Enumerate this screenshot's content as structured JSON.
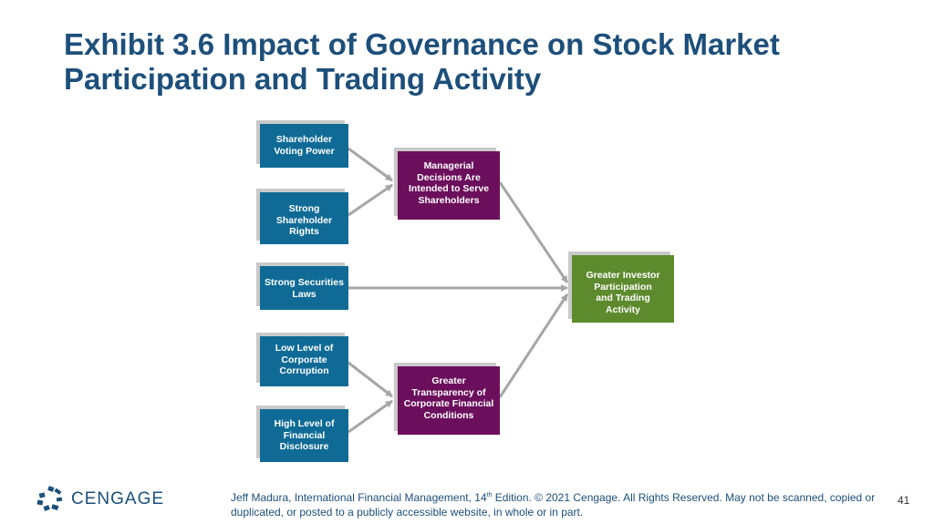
{
  "title": "Exhibit 3.6 Impact of Governance on Stock Market Participation and Trading Activity",
  "boxes": {
    "voting": "Shareholder\nVoting Power",
    "rights": "Strong\nShareholder\nRights",
    "securities": "Strong Securities\nLaws",
    "corruption": "Low Level of\nCorporate\nCorruption",
    "disclosure": "High Level of\nFinancial\nDisclosure",
    "managerial": "Managerial\nDecisions Are\nIntended to Serve\nShareholders",
    "transparency": "Greater\nTransparency of\nCorporate Financial\nConditions",
    "participation": "Greater Investor\nParticipation\nand Trading\nActivity"
  },
  "colors": {
    "title": "#1d4f7a",
    "blue_box": "#0f6b96",
    "purple_box": "#6b0f5c",
    "green_box": "#5e8a2e",
    "arrow": "#a6a6a6"
  },
  "logo": {
    "text": "CENGAGE",
    "icon": "cengage-dots-icon"
  },
  "footer": {
    "text_before_sup": "Jeff Madura, International Financial Management, 14",
    "sup": "th",
    "text_after_sup": " Edition. © 2021 Cengage. All Rights Reserved. May not be scanned, copied or duplicated, or posted to a publicly accessible website, in whole or in part."
  },
  "page_number": "41"
}
